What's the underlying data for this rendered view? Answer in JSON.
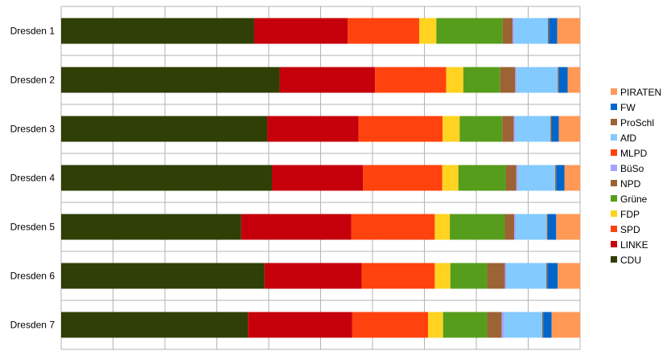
{
  "chart_data": {
    "type": "bar",
    "orientation": "horizontal",
    "stacked": true,
    "percent_stacked": true,
    "categories": [
      "Dresden 1",
      "Dresden 2",
      "Dresden 3",
      "Dresden 4",
      "Dresden 5",
      "Dresden 6",
      "Dresden 7"
    ],
    "xlim": [
      0,
      100
    ],
    "grid": true,
    "legend_position": "right",
    "series": [
      {
        "name": "CDU",
        "color": "#2f3f05",
        "values": [
          37.2,
          42.1,
          39.7,
          40.7,
          34.7,
          39.2,
          36.0
        ]
      },
      {
        "name": "LINKE",
        "color": "#c5000b",
        "values": [
          18.0,
          18.4,
          17.6,
          17.6,
          21.2,
          18.7,
          20.1
        ]
      },
      {
        "name": "SPD",
        "color": "#ff420e",
        "values": [
          13.8,
          13.7,
          16.2,
          15.3,
          16.1,
          14.1,
          14.6
        ]
      },
      {
        "name": "FDP",
        "color": "#ffd320",
        "values": [
          3.3,
          3.3,
          3.3,
          3.1,
          2.9,
          3.0,
          2.9
        ]
      },
      {
        "name": "Grüne",
        "color": "#579d1c",
        "values": [
          12.8,
          7.1,
          8.2,
          9.2,
          10.6,
          7.1,
          8.5
        ]
      },
      {
        "name": "NPD",
        "color": "#9c6334",
        "values": [
          1.9,
          2.9,
          2.2,
          2.0,
          1.8,
          3.4,
          2.8
        ]
      },
      {
        "name": "BüSo",
        "color": "#a3a3ff",
        "values": [
          0.3,
          0.3,
          0.3,
          0.3,
          0.3,
          0.3,
          0.5
        ]
      },
      {
        "name": "MLPD",
        "color": "#ff420e",
        "values": [
          0.0,
          0.0,
          0.0,
          0.0,
          0.0,
          0.0,
          0.0
        ]
      },
      {
        "name": "AfD",
        "color": "#83caff",
        "values": [
          6.5,
          7.9,
          6.8,
          7.2,
          6.0,
          7.7,
          7.3
        ]
      },
      {
        "name": "ProSchl",
        "color": "#9c6334",
        "values": [
          0.2,
          0.2,
          0.2,
          0.2,
          0.2,
          0.2,
          0.2
        ]
      },
      {
        "name": "FW",
        "color": "#0066cc",
        "values": [
          1.6,
          1.7,
          1.4,
          1.6,
          1.6,
          2.0,
          1.6
        ]
      },
      {
        "name": "PIRATEN",
        "color": "#ff9955",
        "values": [
          4.4,
          2.4,
          4.1,
          3.0,
          4.6,
          4.3,
          5.5
        ]
      }
    ],
    "legend_order": [
      "PIRATEN",
      "FW",
      "ProSchl",
      "AfD",
      "MLPD",
      "BüSo",
      "NPD",
      "Grüne",
      "FDP",
      "SPD",
      "LINKE",
      "CDU"
    ]
  }
}
